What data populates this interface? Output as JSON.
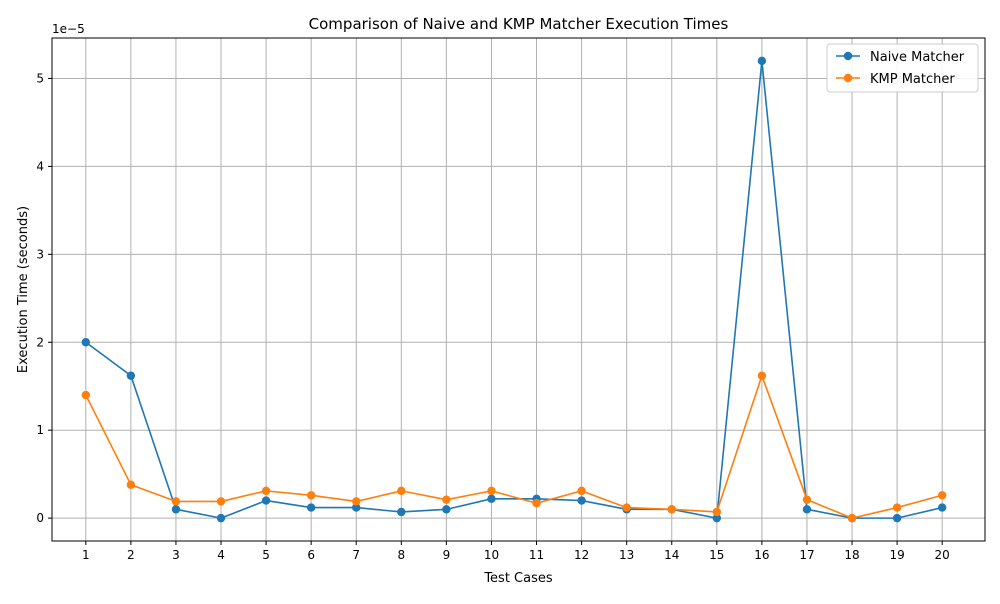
{
  "chart_data": {
    "type": "line",
    "title": "Comparison of Naive and KMP Matcher Execution Times",
    "xlabel": "Test Cases",
    "ylabel": "Execution Time (seconds)",
    "y_offset_label": "1e−5",
    "x": [
      1,
      2,
      3,
      4,
      5,
      6,
      7,
      8,
      9,
      10,
      11,
      12,
      13,
      14,
      15,
      16,
      17,
      18,
      19,
      20
    ],
    "x_tick_labels": [
      "1",
      "2",
      "3",
      "4",
      "5",
      "6",
      "7",
      "8",
      "9",
      "10",
      "11",
      "12",
      "13",
      "14",
      "15",
      "16",
      "17",
      "18",
      "19",
      "20"
    ],
    "y_ticks": [
      0,
      1e-05,
      2e-05,
      3e-05,
      4e-05,
      5e-05
    ],
    "y_tick_labels": [
      "0",
      "1",
      "2",
      "3",
      "4",
      "5"
    ],
    "xlim": [
      0.25,
      20.95
    ],
    "ylim": [
      -2.6e-06,
      5.46e-05
    ],
    "grid": true,
    "legend_position": "top-right",
    "series": [
      {
        "name": "Naive Matcher",
        "color": "#1f77b4",
        "values": [
          2e-05,
          1.62e-05,
          1e-06,
          0.0,
          2e-06,
          1.2e-06,
          1.2e-06,
          7e-07,
          1e-06,
          2.2e-06,
          2.2e-06,
          2e-06,
          1e-06,
          1e-06,
          0.0,
          5.2e-05,
          1e-06,
          0.0,
          0.0,
          1.2e-06
        ]
      },
      {
        "name": "KMP Matcher",
        "color": "#ff7f0e",
        "values": [
          1.4e-05,
          3.8e-06,
          1.9e-06,
          1.9e-06,
          3.1e-06,
          2.6e-06,
          1.9e-06,
          3.1e-06,
          2.1e-06,
          3.1e-06,
          1.7e-06,
          3.1e-06,
          1.2e-06,
          1e-06,
          7e-07,
          1.62e-05,
          2.1e-06,
          0.0,
          1.2e-06,
          2.6e-06
        ]
      }
    ]
  }
}
